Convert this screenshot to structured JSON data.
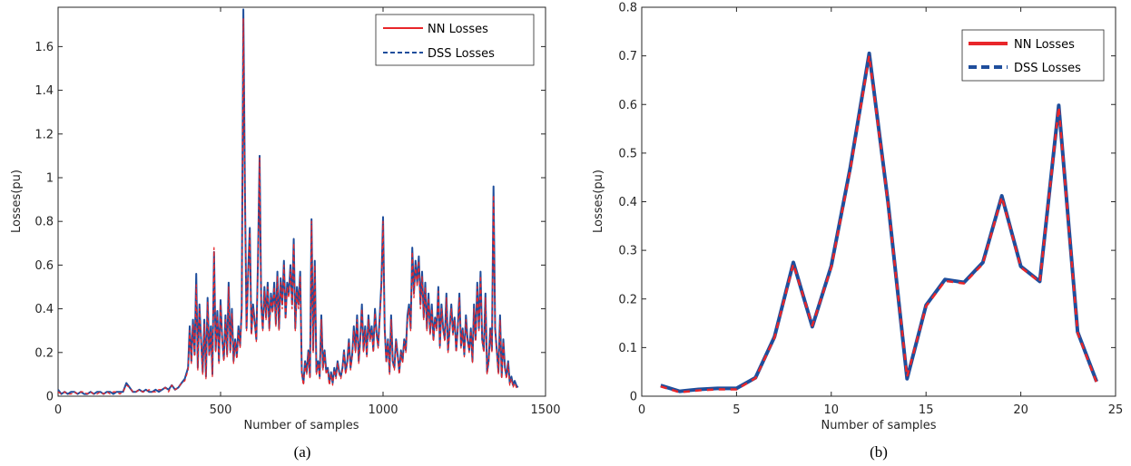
{
  "colors": {
    "nn": "#e8262a",
    "dss": "#1f4e9c",
    "axis": "#262626"
  },
  "chart_data": [
    {
      "type": "line",
      "caption": "(a)",
      "xlabel": "Number of samples",
      "ylabel": "Losses(pu)",
      "xlim": [
        0,
        1500
      ],
      "ylim": [
        0,
        1.78
      ],
      "xticks": [
        0,
        500,
        1000,
        1500
      ],
      "xtick_labels": [
        "0",
        "500",
        "1000",
        "1500"
      ],
      "yticks": [
        0,
        0.2,
        0.4,
        0.6,
        0.8,
        1,
        1.2,
        1.4,
        1.6
      ],
      "ytick_labels": [
        "0",
        "0.2",
        "0.4",
        "0.6",
        "0.8",
        "1",
        "1.2",
        "1.4",
        "1.6"
      ],
      "legend": "top-right",
      "series": [
        {
          "name": "NN Losses",
          "style": "solid"
        },
        {
          "name": "DSS Losses",
          "style": "dashed"
        }
      ],
      "x": [
        0,
        10,
        20,
        30,
        40,
        50,
        60,
        70,
        80,
        90,
        100,
        110,
        120,
        130,
        140,
        150,
        160,
        170,
        180,
        190,
        200,
        210,
        220,
        230,
        240,
        250,
        260,
        270,
        280,
        290,
        300,
        310,
        320,
        330,
        340,
        350,
        360,
        370,
        380,
        390,
        400,
        405,
        410,
        415,
        420,
        425,
        430,
        435,
        440,
        445,
        450,
        455,
        460,
        465,
        470,
        475,
        480,
        485,
        490,
        495,
        500,
        505,
        510,
        515,
        520,
        525,
        530,
        535,
        540,
        545,
        550,
        555,
        560,
        565,
        570,
        575,
        580,
        585,
        590,
        595,
        600,
        605,
        610,
        615,
        620,
        625,
        630,
        635,
        640,
        645,
        650,
        655,
        660,
        665,
        670,
        675,
        680,
        685,
        690,
        695,
        700,
        705,
        710,
        715,
        720,
        725,
        730,
        735,
        740,
        745,
        750,
        755,
        760,
        765,
        770,
        775,
        780,
        785,
        790,
        795,
        800,
        805,
        810,
        815,
        820,
        825,
        830,
        835,
        840,
        845,
        850,
        855,
        860,
        865,
        870,
        875,
        880,
        885,
        890,
        895,
        900,
        905,
        910,
        915,
        920,
        925,
        930,
        935,
        940,
        945,
        950,
        955,
        960,
        965,
        970,
        975,
        980,
        985,
        990,
        995,
        1000,
        1005,
        1010,
        1015,
        1020,
        1025,
        1030,
        1035,
        1040,
        1045,
        1050,
        1055,
        1060,
        1065,
        1070,
        1075,
        1080,
        1085,
        1090,
        1095,
        1100,
        1105,
        1110,
        1115,
        1120,
        1125,
        1130,
        1135,
        1140,
        1145,
        1150,
        1155,
        1160,
        1165,
        1170,
        1175,
        1180,
        1185,
        1190,
        1195,
        1200,
        1205,
        1210,
        1215,
        1220,
        1225,
        1230,
        1235,
        1240,
        1245,
        1250,
        1255,
        1260,
        1265,
        1270,
        1275,
        1280,
        1285,
        1290,
        1295,
        1300,
        1305,
        1310,
        1315,
        1320,
        1325,
        1330,
        1335,
        1340,
        1345,
        1350,
        1355,
        1360,
        1365,
        1370,
        1375,
        1380,
        1385,
        1390,
        1395,
        1400,
        1405,
        1410,
        1415,
        1420,
        1425,
        1430,
        1435,
        1440
      ],
      "nn": [
        0.02,
        0.01,
        0.02,
        0.01,
        0.01,
        0.02,
        0.01,
        0.02,
        0.02,
        0.01,
        0.02,
        0.01,
        0.01,
        0.02,
        0.01,
        0.02,
        0.01,
        0.02,
        0.02,
        0.01,
        0.02,
        0.05,
        0.04,
        0.02,
        0.02,
        0.03,
        0.02,
        0.02,
        0.03,
        0.02,
        0.02,
        0.03,
        0.03,
        0.04,
        0.02,
        0.05,
        0.03,
        0.04,
        0.06,
        0.07,
        0.12,
        0.3,
        0.15,
        0.33,
        0.18,
        0.51,
        0.12,
        0.4,
        0.25,
        0.1,
        0.33,
        0.08,
        0.43,
        0.18,
        0.3,
        0.09,
        0.68,
        0.2,
        0.37,
        0.15,
        0.42,
        0.25,
        0.16,
        0.35,
        0.18,
        0.5,
        0.2,
        0.38,
        0.15,
        0.25,
        0.17,
        0.3,
        0.22,
        0.38,
        1.73,
        0.9,
        0.3,
        0.55,
        0.75,
        0.28,
        0.4,
        0.33,
        0.25,
        0.6,
        1.09,
        0.4,
        0.3,
        0.48,
        0.35,
        0.5,
        0.3,
        0.45,
        0.38,
        0.5,
        0.32,
        0.55,
        0.3,
        0.52,
        0.4,
        0.6,
        0.35,
        0.5,
        0.45,
        0.58,
        0.4,
        0.7,
        0.3,
        0.48,
        0.4,
        0.55,
        0.1,
        0.05,
        0.15,
        0.1,
        0.2,
        0.08,
        0.8,
        0.2,
        0.6,
        0.1,
        0.15,
        0.08,
        0.35,
        0.12,
        0.2,
        0.1,
        0.12,
        0.05,
        0.1,
        0.05,
        0.12,
        0.08,
        0.15,
        0.1,
        0.08,
        0.12,
        0.2,
        0.1,
        0.15,
        0.25,
        0.12,
        0.18,
        0.3,
        0.2,
        0.35,
        0.15,
        0.25,
        0.4,
        0.2,
        0.3,
        0.18,
        0.35,
        0.25,
        0.3,
        0.2,
        0.38,
        0.28,
        0.22,
        0.35,
        0.5,
        0.8,
        0.3,
        0.15,
        0.25,
        0.1,
        0.35,
        0.15,
        0.12,
        0.25,
        0.18,
        0.1,
        0.2,
        0.15,
        0.25,
        0.2,
        0.35,
        0.4,
        0.3,
        0.66,
        0.45,
        0.6,
        0.5,
        0.62,
        0.4,
        0.55,
        0.35,
        0.5,
        0.3,
        0.45,
        0.28,
        0.4,
        0.25,
        0.35,
        0.3,
        0.48,
        0.22,
        0.4,
        0.3,
        0.25,
        0.45,
        0.2,
        0.3,
        0.4,
        0.28,
        0.35,
        0.2,
        0.3,
        0.45,
        0.22,
        0.3,
        0.18,
        0.35,
        0.25,
        0.2,
        0.3,
        0.15,
        0.4,
        0.25,
        0.5,
        0.3,
        0.55,
        0.25,
        0.2,
        0.45,
        0.1,
        0.15,
        0.3,
        0.2,
        0.92,
        0.3,
        0.2,
        0.1,
        0.35,
        0.08,
        0.25,
        0.12,
        0.08,
        0.15,
        0.05,
        0.08,
        0.04,
        0.06,
        0.04,
        0.03
      ],
      "dss": [
        0.03,
        0.01,
        0.02,
        0.01,
        0.02,
        0.02,
        0.01,
        0.02,
        0.01,
        0.01,
        0.02,
        0.01,
        0.02,
        0.02,
        0.01,
        0.02,
        0.02,
        0.01,
        0.02,
        0.02,
        0.02,
        0.06,
        0.04,
        0.02,
        0.02,
        0.03,
        0.02,
        0.03,
        0.02,
        0.02,
        0.03,
        0.02,
        0.03,
        0.04,
        0.03,
        0.05,
        0.03,
        0.04,
        0.06,
        0.08,
        0.13,
        0.32,
        0.16,
        0.35,
        0.19,
        0.56,
        0.13,
        0.42,
        0.26,
        0.11,
        0.35,
        0.09,
        0.45,
        0.19,
        0.32,
        0.1,
        0.66,
        0.21,
        0.39,
        0.16,
        0.44,
        0.26,
        0.17,
        0.37,
        0.19,
        0.52,
        0.21,
        0.4,
        0.16,
        0.26,
        0.18,
        0.32,
        0.23,
        0.4,
        1.77,
        0.92,
        0.31,
        0.57,
        0.77,
        0.29,
        0.42,
        0.34,
        0.26,
        0.62,
        1.1,
        0.42,
        0.31,
        0.5,
        0.36,
        0.52,
        0.31,
        0.47,
        0.39,
        0.52,
        0.33,
        0.57,
        0.31,
        0.54,
        0.42,
        0.62,
        0.36,
        0.52,
        0.47,
        0.6,
        0.42,
        0.72,
        0.31,
        0.5,
        0.42,
        0.57,
        0.11,
        0.06,
        0.16,
        0.11,
        0.21,
        0.09,
        0.81,
        0.21,
        0.62,
        0.11,
        0.16,
        0.09,
        0.37,
        0.13,
        0.21,
        0.11,
        0.13,
        0.06,
        0.11,
        0.06,
        0.13,
        0.09,
        0.16,
        0.11,
        0.09,
        0.13,
        0.21,
        0.11,
        0.16,
        0.26,
        0.13,
        0.19,
        0.32,
        0.21,
        0.37,
        0.16,
        0.26,
        0.42,
        0.21,
        0.32,
        0.19,
        0.37,
        0.26,
        0.32,
        0.21,
        0.4,
        0.29,
        0.23,
        0.37,
        0.52,
        0.82,
        0.31,
        0.16,
        0.26,
        0.11,
        0.37,
        0.16,
        0.13,
        0.26,
        0.19,
        0.11,
        0.21,
        0.16,
        0.26,
        0.21,
        0.37,
        0.42,
        0.31,
        0.68,
        0.47,
        0.62,
        0.52,
        0.64,
        0.42,
        0.57,
        0.36,
        0.52,
        0.31,
        0.47,
        0.29,
        0.42,
        0.26,
        0.36,
        0.31,
        0.5,
        0.23,
        0.42,
        0.31,
        0.26,
        0.47,
        0.21,
        0.31,
        0.42,
        0.29,
        0.36,
        0.21,
        0.31,
        0.47,
        0.23,
        0.31,
        0.19,
        0.37,
        0.26,
        0.21,
        0.31,
        0.16,
        0.42,
        0.26,
        0.52,
        0.31,
        0.57,
        0.26,
        0.21,
        0.47,
        0.11,
        0.16,
        0.31,
        0.21,
        0.96,
        0.31,
        0.21,
        0.11,
        0.37,
        0.09,
        0.26,
        0.13,
        0.09,
        0.16,
        0.06,
        0.09,
        0.05,
        0.07,
        0.05,
        0.04
      ]
    },
    {
      "type": "line",
      "caption": "(b)",
      "xlabel": "Number of samples",
      "ylabel": "Losses(pu)",
      "xlim": [
        0,
        25
      ],
      "ylim": [
        0,
        0.8
      ],
      "xticks": [
        0,
        5,
        10,
        15,
        20,
        25
      ],
      "xtick_labels": [
        "0",
        "5",
        "10",
        "15",
        "20",
        "25"
      ],
      "yticks": [
        0,
        0.1,
        0.2,
        0.3,
        0.4,
        0.5,
        0.6,
        0.7,
        0.8
      ],
      "ytick_labels": [
        "0",
        "0.1",
        "0.2",
        "0.3",
        "0.4",
        "0.5",
        "0.6",
        "0.7",
        "0.8"
      ],
      "legend": "top-right",
      "series": [
        {
          "name": "NN Losses",
          "style": "solid"
        },
        {
          "name": "DSS Losses",
          "style": "dashed"
        }
      ],
      "x": [
        1,
        2,
        3,
        4,
        5,
        6,
        7,
        8,
        9,
        10,
        11,
        12,
        13,
        14,
        15,
        16,
        17,
        18,
        19,
        20,
        21,
        22,
        23,
        24
      ],
      "nn": [
        0.02,
        0.008,
        0.012,
        0.014,
        0.014,
        0.037,
        0.12,
        0.272,
        0.145,
        0.265,
        0.465,
        0.7,
        0.395,
        0.04,
        0.185,
        0.237,
        0.232,
        0.272,
        0.41,
        0.265,
        0.235,
        0.595,
        0.13,
        0.028
      ],
      "dss": [
        0.022,
        0.01,
        0.014,
        0.016,
        0.016,
        0.038,
        0.122,
        0.275,
        0.143,
        0.268,
        0.47,
        0.705,
        0.398,
        0.036,
        0.187,
        0.24,
        0.234,
        0.275,
        0.412,
        0.267,
        0.236,
        0.598,
        0.132,
        0.03
      ]
    }
  ]
}
